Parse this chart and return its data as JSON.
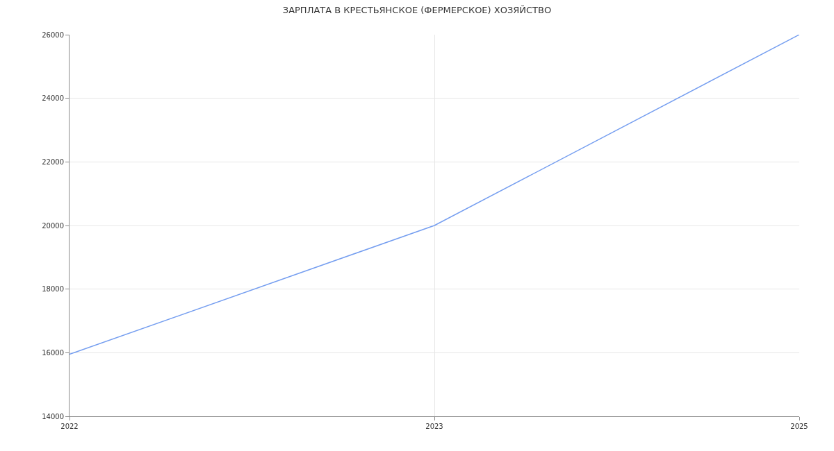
{
  "chart_data": {
    "type": "line",
    "title": "ЗАРПЛАТА В КРЕСТЬЯНСКОЕ (ФЕРМЕРСКОЕ) ХОЗЯЙСТВО",
    "categories": [
      "2022",
      "2023",
      "2025"
    ],
    "series": [
      {
        "color": "#759ef0",
        "values": [
          15950,
          20000,
          26000
        ]
      }
    ],
    "ylim": [
      14000,
      26000
    ],
    "yticks": [
      14000,
      16000,
      18000,
      20000,
      22000,
      24000,
      26000
    ],
    "grid": true,
    "legend": false,
    "marker": "none",
    "line_style": "solid"
  }
}
